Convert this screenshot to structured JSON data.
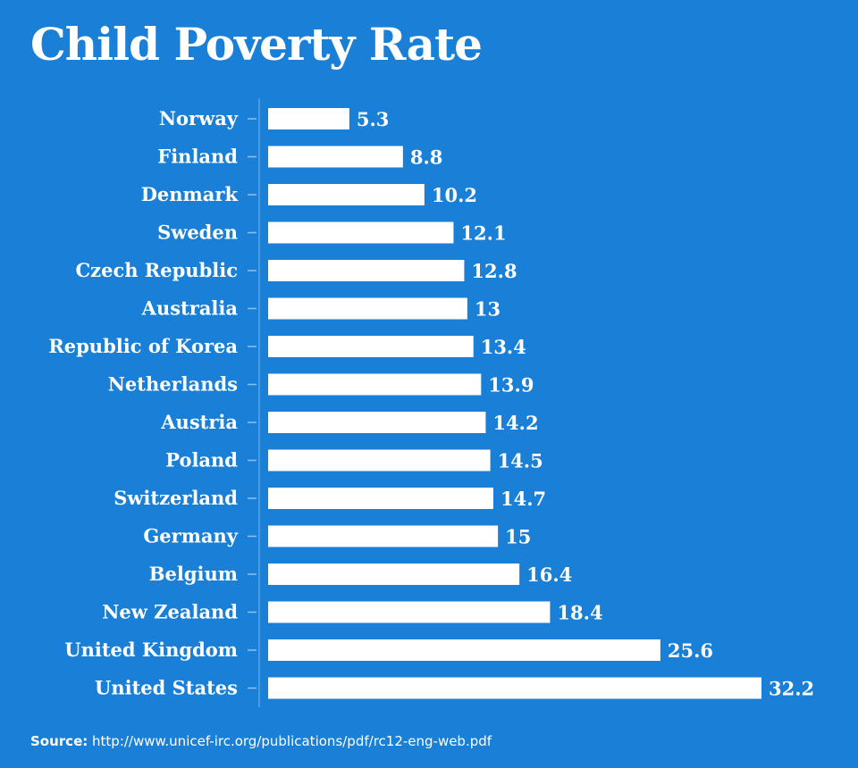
{
  "chart_data": {
    "type": "bar",
    "orientation": "horizontal",
    "title": "Child Poverty Rate",
    "categories": [
      "Norway",
      "Finland",
      "Denmark",
      "Sweden",
      "Czech Republic",
      "Australia",
      "Republic of Korea",
      "Netherlands",
      "Austria",
      "Poland",
      "Switzerland",
      "Germany",
      "Belgium",
      "New Zealand",
      "United Kingdom",
      "United States"
    ],
    "values": [
      5.3,
      8.8,
      10.2,
      12.1,
      12.8,
      13,
      13.4,
      13.9,
      14.2,
      14.5,
      14.7,
      15,
      16.4,
      18.4,
      25.6,
      32.2
    ],
    "value_labels": [
      "5.3",
      "8.8",
      "10.2",
      "12.1",
      "12.8",
      "13",
      "13.4",
      "13.9",
      "14.2",
      "14.5",
      "14.7",
      "15",
      "16.4",
      "18.4",
      "25.6",
      "32.2"
    ],
    "xlim": [
      0,
      32.2
    ],
    "grid": false,
    "bar_color": "#ffffff",
    "background_color": "#1a7fd6"
  },
  "source": {
    "label": "Source:",
    "url": "http://www.unicef-irc.org/publications/pdf/rc12-eng-web.pdf"
  }
}
